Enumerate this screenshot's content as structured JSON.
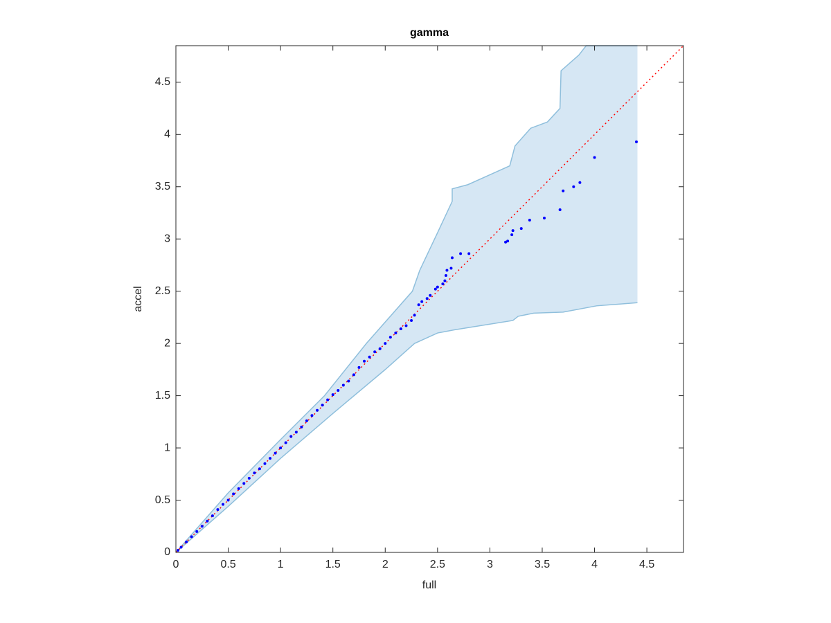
{
  "chart_data": {
    "type": "qq",
    "title": "gamma",
    "x_label": "full",
    "y_label": "accel",
    "xlim": [
      0,
      4.85
    ],
    "ylim": [
      0,
      4.85
    ],
    "xticks": [
      0,
      0.5,
      1,
      1.5,
      2,
      2.5,
      3,
      3.5,
      4,
      4.5
    ],
    "yticks": [
      0,
      0.5,
      1,
      1.5,
      2,
      2.5,
      3,
      3.5,
      4,
      4.5
    ],
    "band": {
      "fill": "#d6e7f4",
      "edge": "#8fbfdc",
      "upper": {
        "x": [
          0,
          0.5,
          1.0,
          1.42,
          1.82,
          2.26,
          2.33,
          2.5,
          2.64,
          2.64,
          2.79,
          3.19,
          3.24,
          3.39,
          3.55,
          3.67,
          3.68,
          3.85,
          3.92,
          4.41
        ],
        "y": [
          0,
          0.57,
          1.08,
          1.5,
          2.0,
          2.5,
          2.7,
          3.06,
          3.36,
          3.48,
          3.52,
          3.7,
          3.89,
          4.06,
          4.12,
          4.25,
          4.61,
          4.76,
          4.85,
          4.85
        ]
      },
      "lower": {
        "x": [
          0,
          0.5,
          1.0,
          1.5,
          2.0,
          2.28,
          2.5,
          2.66,
          3.22,
          3.27,
          3.42,
          3.7,
          4.02,
          4.41
        ],
        "y": [
          0,
          0.44,
          0.9,
          1.33,
          1.75,
          2.0,
          2.1,
          2.13,
          2.22,
          2.26,
          2.29,
          2.3,
          2.36,
          2.39
        ]
      }
    },
    "reference": {
      "color": "#ff0000",
      "x": [
        0,
        4.85
      ],
      "y": [
        0,
        4.85
      ]
    },
    "points": {
      "color": "#0000ff",
      "x": [
        0.02,
        0.05,
        0.1,
        0.15,
        0.2,
        0.25,
        0.3,
        0.35,
        0.4,
        0.45,
        0.5,
        0.55,
        0.6,
        0.65,
        0.7,
        0.75,
        0.8,
        0.85,
        0.9,
        0.95,
        1.0,
        1.05,
        1.1,
        1.15,
        1.2,
        1.25,
        1.3,
        1.35,
        1.4,
        1.45,
        1.5,
        1.55,
        1.6,
        1.65,
        1.7,
        1.75,
        1.8,
        1.85,
        1.9,
        1.95,
        2.0,
        2.05,
        2.1,
        2.15,
        2.2,
        2.25,
        2.28,
        2.32,
        2.35,
        2.4,
        2.43,
        2.48,
        2.5,
        2.55,
        2.57,
        2.58,
        2.59,
        2.63,
        2.64,
        2.72,
        2.8,
        3.15,
        3.17,
        3.21,
        3.22,
        3.3,
        3.38,
        3.52,
        3.67,
        3.7,
        3.8,
        3.86,
        4.0,
        4.4
      ],
      "y": [
        0.02,
        0.05,
        0.1,
        0.15,
        0.2,
        0.25,
        0.3,
        0.35,
        0.41,
        0.46,
        0.5,
        0.56,
        0.61,
        0.66,
        0.71,
        0.76,
        0.8,
        0.85,
        0.9,
        0.95,
        1.0,
        1.05,
        1.11,
        1.15,
        1.2,
        1.26,
        1.31,
        1.36,
        1.41,
        1.46,
        1.51,
        1.55,
        1.6,
        1.64,
        1.7,
        1.77,
        1.83,
        1.87,
        1.92,
        1.95,
        2.0,
        2.06,
        2.1,
        2.14,
        2.17,
        2.22,
        2.27,
        2.37,
        2.4,
        2.43,
        2.46,
        2.52,
        2.54,
        2.57,
        2.6,
        2.65,
        2.7,
        2.72,
        2.82,
        2.86,
        2.86,
        2.97,
        2.98,
        3.04,
        3.08,
        3.1,
        3.18,
        3.2,
        3.28,
        3.46,
        3.5,
        3.54,
        3.78,
        3.93
      ]
    }
  }
}
